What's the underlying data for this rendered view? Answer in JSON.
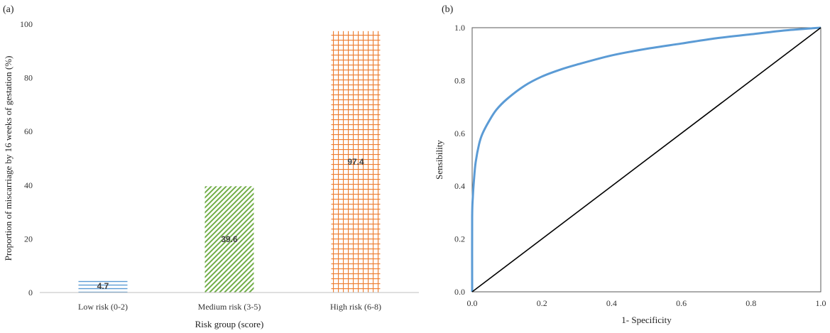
{
  "chart_data": [
    {
      "panel": "(a)",
      "type": "bar",
      "categories": [
        "Low risk (0-2)",
        "Medium risk (3-5)",
        "High risk (6-8)"
      ],
      "values": [
        4.7,
        39.6,
        97.4
      ],
      "data_labels": [
        "4.7",
        "39.6",
        "97.4"
      ],
      "bar_colors": [
        "#5b9bd5",
        "#70ad47",
        "#ed7d31"
      ],
      "bar_patterns": [
        "horizontal-lines",
        "diagonal-lines",
        "grid"
      ],
      "xlabel": "Risk group (score)",
      "ylabel": "Proportion of miscarriage by 16 weeks of gestation  (%)",
      "ylim": [
        0,
        100
      ],
      "yticks": [
        "0",
        "20",
        "40",
        "60",
        "80",
        "100"
      ],
      "grid": false
    },
    {
      "panel": "(b)",
      "type": "line",
      "xlabel": "1- Specificity",
      "ylabel": "Sensibility",
      "xlim": [
        0,
        1
      ],
      "ylim": [
        0,
        1
      ],
      "xticks": [
        "0.0",
        "0.2",
        "0.4",
        "0.6",
        "0.8",
        "1.0"
      ],
      "yticks": [
        "0.0",
        "0.2",
        "0.4",
        "0.6",
        "0.8",
        "1.0"
      ],
      "grid": false,
      "series": [
        {
          "type": "roc-curve",
          "color": "#5b9bd5",
          "x": [
            0,
            0,
            0.002,
            0.005,
            0.01,
            0.02,
            0.03,
            0.05,
            0.07,
            0.1,
            0.15,
            0.2,
            0.25,
            0.3,
            0.4,
            0.5,
            0.6,
            0.7,
            0.8,
            0.9,
            1.0
          ],
          "y": [
            0,
            0.28,
            0.36,
            0.42,
            0.49,
            0.56,
            0.6,
            0.65,
            0.69,
            0.73,
            0.78,
            0.815,
            0.84,
            0.86,
            0.895,
            0.92,
            0.94,
            0.96,
            0.975,
            0.99,
            1.0
          ]
        },
        {
          "type": "reference-diagonal",
          "color": "#000000",
          "x": [
            0,
            1
          ],
          "y": [
            0,
            1
          ]
        }
      ]
    }
  ]
}
